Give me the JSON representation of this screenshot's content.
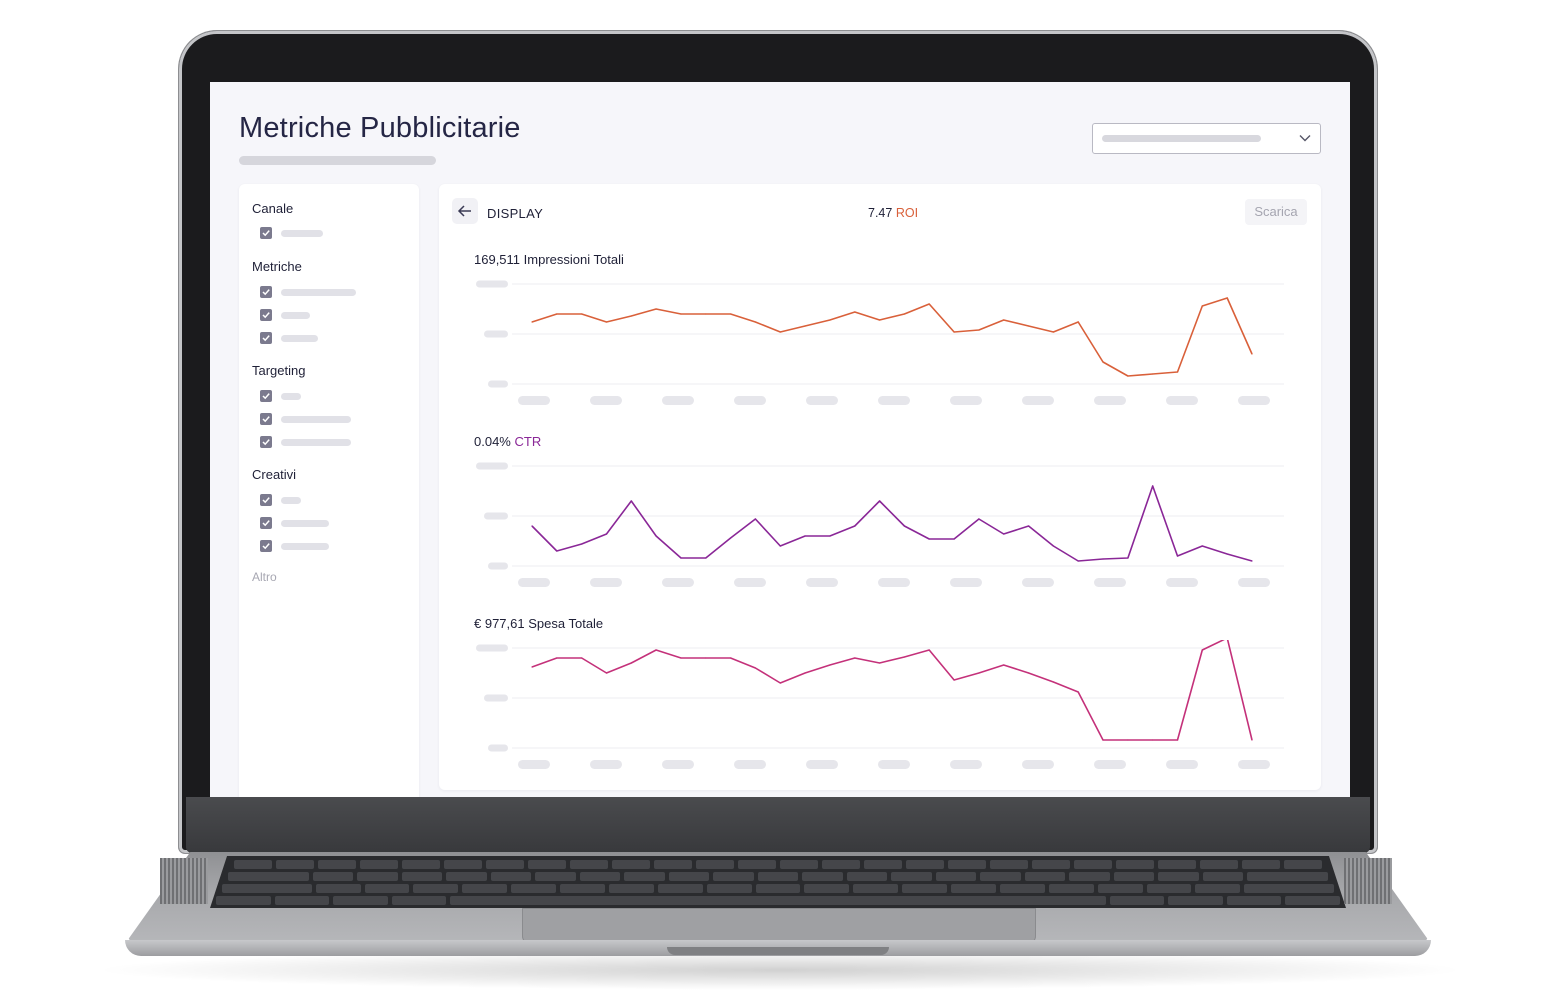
{
  "page": {
    "title": "Metriche Pubblicitarie"
  },
  "filters": {
    "groups": [
      {
        "title": "Canale",
        "options": 1
      },
      {
        "title": "Metriche",
        "options": 3
      },
      {
        "title": "Targeting",
        "options": 3
      },
      {
        "title": "Creativi",
        "options": 3
      }
    ],
    "more_label": "Altro"
  },
  "panel": {
    "channel": "DISPLAY",
    "roi_value": "7.47",
    "roi_label": "ROI",
    "download_label": "Scarica"
  },
  "metrics": {
    "impressions": {
      "value": "169,511",
      "label": "Impressioni Totali"
    },
    "ctr": {
      "value": "0.04%",
      "label": "CTR"
    },
    "spend": {
      "value": "€ 977,61",
      "label": "Spesa Totale"
    }
  },
  "icons": {
    "back": "arrow-left-icon",
    "dropdown": "chevron-down-icon",
    "check": "check-icon"
  },
  "colors": {
    "impressions_line": "#d9603a",
    "ctr_line": "#8a2797",
    "spend_line": "#c4317a",
    "roi_accent": "#d9603a",
    "ctr_accent": "#8a2797"
  },
  "chart_data": [
    {
      "type": "line",
      "title": "169,511 Impressioni Totali",
      "color": "#d9603a",
      "ylim": [
        0,
        100
      ],
      "x": [
        1,
        2,
        3,
        4,
        5,
        6,
        7,
        8,
        9,
        10,
        11,
        12,
        13,
        14,
        15,
        16,
        17,
        18,
        19,
        20,
        21,
        22,
        23,
        24,
        25,
        26,
        27,
        28,
        29,
        30
      ],
      "values": [
        62,
        70,
        70,
        62,
        68,
        75,
        70,
        70,
        70,
        62,
        52,
        58,
        64,
        72,
        64,
        70,
        80,
        52,
        54,
        64,
        58,
        52,
        62,
        22,
        8,
        10,
        12,
        78,
        86,
        30
      ]
    },
    {
      "type": "line",
      "title": "0.04% CTR",
      "color": "#8a2797",
      "ylim": [
        0,
        100
      ],
      "x": [
        1,
        2,
        3,
        4,
        5,
        6,
        7,
        8,
        9,
        10,
        11,
        12,
        13,
        14,
        15,
        16,
        17,
        18,
        19,
        20,
        21,
        22,
        23,
        24,
        25,
        26,
        27,
        28,
        29,
        30
      ],
      "values": [
        40,
        15,
        22,
        32,
        65,
        30,
        8,
        8,
        28,
        47,
        20,
        30,
        30,
        40,
        65,
        40,
        27,
        27,
        47,
        32,
        40,
        20,
        5,
        7,
        8,
        80,
        10,
        20,
        12,
        5
      ]
    },
    {
      "type": "line",
      "title": "€ 977,61 Spesa Totale",
      "color": "#c4317a",
      "ylim": [
        0,
        100
      ],
      "x": [
        1,
        2,
        3,
        4,
        5,
        6,
        7,
        8,
        9,
        10,
        11,
        12,
        13,
        14,
        15,
        16,
        17,
        18,
        19,
        20,
        21,
        22,
        23,
        24,
        25,
        26,
        27,
        28,
        29,
        30
      ],
      "values": [
        81,
        90,
        90,
        75,
        85,
        98,
        90,
        90,
        90,
        80,
        65,
        75,
        83,
        90,
        85,
        91,
        98,
        68,
        75,
        83,
        75,
        66,
        56,
        8,
        8,
        8,
        8,
        98,
        110,
        8
      ]
    }
  ]
}
